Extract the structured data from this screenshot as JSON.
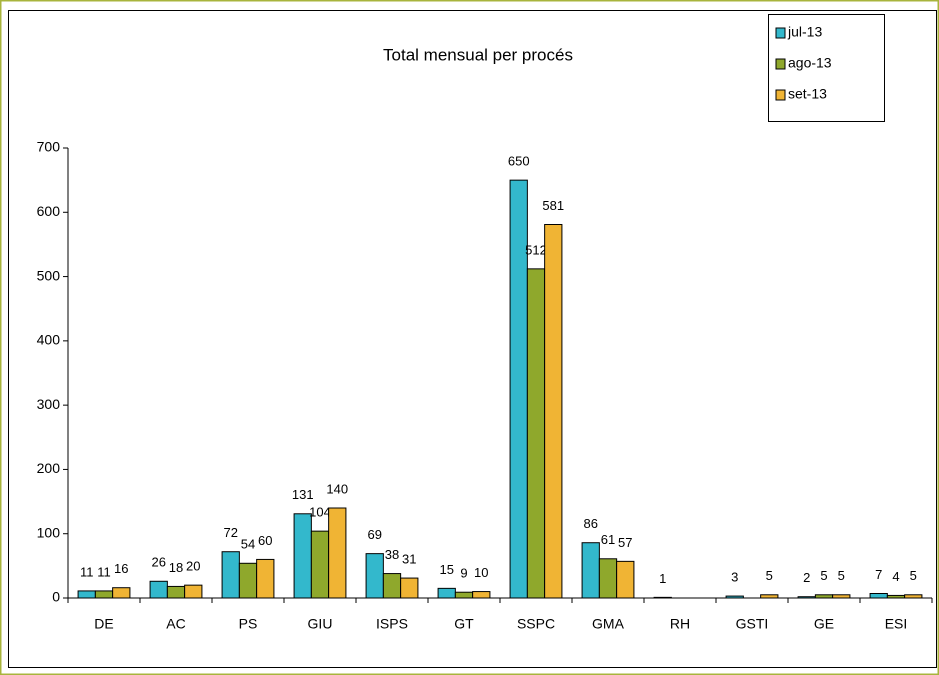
{
  "chart_data": {
    "type": "bar",
    "title": "Total mensual per procés",
    "categories": [
      "DE",
      "AC",
      "PS",
      "GIU",
      "ISPS",
      "GT",
      "SSPC",
      "GMA",
      "RH",
      "GSTI",
      "GE",
      "ESI"
    ],
    "series": [
      {
        "name": "jul-13",
        "color": "#33b8cc",
        "values": [
          11,
          26,
          72,
          131,
          69,
          15,
          650,
          86,
          1,
          3,
          2,
          7
        ]
      },
      {
        "name": "ago-13",
        "color": "#8fa82c",
        "values": [
          11,
          18,
          54,
          104,
          38,
          9,
          512,
          61,
          null,
          null,
          5,
          4
        ]
      },
      {
        "name": "set-13",
        "color": "#f0b434",
        "values": [
          16,
          20,
          60,
          140,
          31,
          10,
          581,
          57,
          null,
          5,
          5,
          5
        ]
      }
    ],
    "ylim": [
      0,
      700
    ],
    "yticks": [
      0,
      100,
      200,
      300,
      400,
      500,
      600,
      700
    ],
    "grid": false,
    "legend": "top-right"
  }
}
